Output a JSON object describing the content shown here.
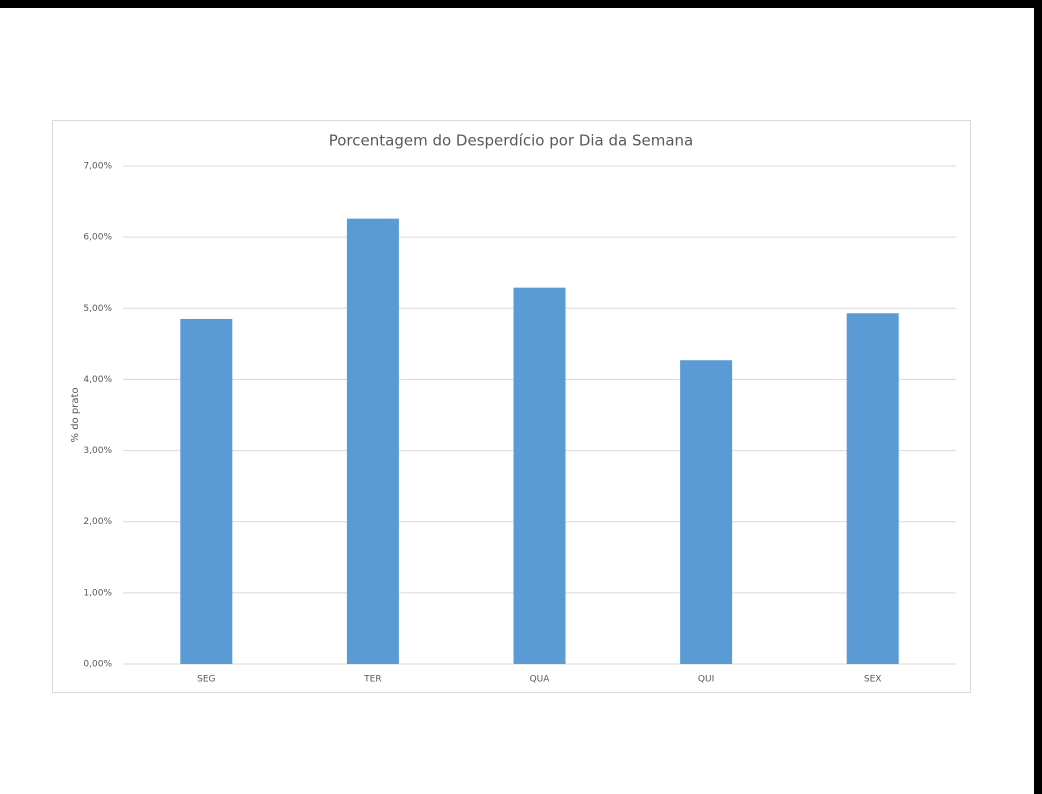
{
  "chart_data": {
    "type": "bar",
    "title": "Porcentagem do Desperdício por Dia da Semana",
    "y_label": "% do prato",
    "categories": [
      "SEG",
      "TER",
      "QUA",
      "QUI",
      "SEX"
    ],
    "values": [
      4.85,
      6.26,
      5.29,
      4.27,
      4.93
    ],
    "color": "#5b9bd5",
    "ylim": [
      0,
      7
    ],
    "yticks": [
      {
        "value": 0,
        "label": "0,00%"
      },
      {
        "value": 1,
        "label": "1,00%"
      },
      {
        "value": 2,
        "label": "2,00%"
      },
      {
        "value": 3,
        "label": "3,00%"
      },
      {
        "value": 4,
        "label": "4,00%"
      },
      {
        "value": 5,
        "label": "5,00%"
      },
      {
        "value": 6,
        "label": "6,00%"
      },
      {
        "value": 7,
        "label": "7,00%"
      }
    ],
    "grid": true
  }
}
